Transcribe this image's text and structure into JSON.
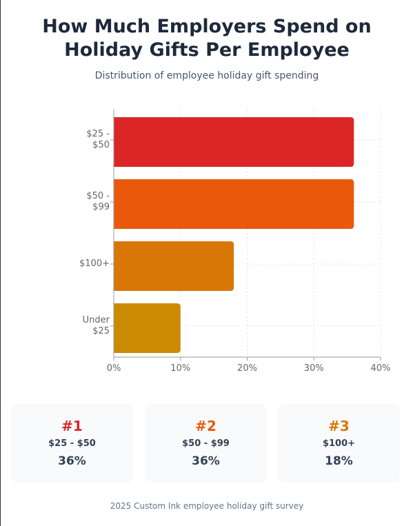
{
  "header": {
    "title": "How Much Employers Spend on Holiday Gifts Per Employee",
    "subtitle": "Distribution of employee holiday gift spending"
  },
  "chart_data": {
    "type": "bar",
    "orientation": "horizontal",
    "categories": [
      "$25 - $50",
      "$50 - $99",
      "$100+",
      "Under $25"
    ],
    "values": [
      36,
      36,
      18,
      10
    ],
    "colors": [
      "#dc2626",
      "#ea580c",
      "#d97706",
      "#ca8a04"
    ],
    "xlim": [
      0,
      40
    ],
    "xticks": [
      {
        "value": 0,
        "label": "0%"
      },
      {
        "value": 10,
        "label": "10%"
      },
      {
        "value": 20,
        "label": "20%"
      },
      {
        "value": 30,
        "label": "30%"
      },
      {
        "value": 40,
        "label": "40%"
      }
    ],
    "grid": true
  },
  "cards": [
    {
      "rank": "#1",
      "label": "$25 - $50",
      "value": "36%",
      "color": "#dc2626"
    },
    {
      "rank": "#2",
      "label": "$50 - $99",
      "value": "36%",
      "color": "#ea580c"
    },
    {
      "rank": "#3",
      "label": "$100+",
      "value": "18%",
      "color": "#d97706"
    }
  ],
  "footer": {
    "source": "2025 Custom Ink employee holiday gift survey"
  }
}
